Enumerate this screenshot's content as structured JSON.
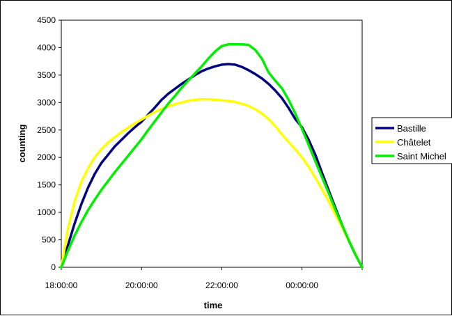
{
  "chart_data": {
    "type": "line",
    "title": "",
    "xlabel": "time",
    "ylabel": "counting",
    "x_ticks": [
      "18:00:00",
      "20:00:00",
      "22:00:00",
      "00:00:00"
    ],
    "x_range": [
      "18:00",
      "01:30"
    ],
    "ylim": [
      0,
      4500
    ],
    "y_ticks": [
      "0",
      "500",
      "1000",
      "1500",
      "2000",
      "2500",
      "3000",
      "3500",
      "4000",
      "4500"
    ],
    "grid": false,
    "legend_position": "right",
    "x": [
      "18:00",
      "18:10",
      "18:20",
      "18:30",
      "18:40",
      "18:50",
      "19:00",
      "19:10",
      "19:20",
      "19:30",
      "19:40",
      "19:50",
      "20:00",
      "20:10",
      "20:20",
      "20:30",
      "20:40",
      "20:50",
      "21:00",
      "21:10",
      "21:20",
      "21:30",
      "21:40",
      "21:50",
      "22:00",
      "22:10",
      "22:20",
      "22:30",
      "22:40",
      "22:50",
      "23:00",
      "23:10",
      "23:20",
      "23:30",
      "23:40",
      "23:50",
      "00:00",
      "00:10",
      "00:20",
      "00:30",
      "00:40",
      "00:50",
      "01:00",
      "01:10",
      "01:20",
      "01:30"
    ],
    "series": [
      {
        "name": "Bastille",
        "color": "#000080",
        "values": [
          0,
          400,
          800,
          1150,
          1450,
          1700,
          1900,
          2050,
          2200,
          2320,
          2440,
          2550,
          2650,
          2780,
          2910,
          3050,
          3160,
          3250,
          3340,
          3420,
          3500,
          3570,
          3620,
          3660,
          3690,
          3700,
          3690,
          3650,
          3590,
          3520,
          3440,
          3340,
          3220,
          3080,
          2900,
          2700,
          2550,
          2320,
          2050,
          1720,
          1400,
          1080,
          770,
          480,
          230,
          0
        ]
      },
      {
        "name": "Châtelet",
        "color": "#ffff00",
        "values": [
          0,
          700,
          1200,
          1550,
          1800,
          2000,
          2150,
          2270,
          2370,
          2460,
          2540,
          2620,
          2690,
          2760,
          2830,
          2880,
          2930,
          2970,
          3000,
          3030,
          3050,
          3060,
          3060,
          3050,
          3040,
          3030,
          3010,
          2980,
          2940,
          2880,
          2800,
          2700,
          2570,
          2420,
          2280,
          2150,
          2000,
          1830,
          1630,
          1420,
          1200,
          960,
          730,
          480,
          240,
          0
        ]
      },
      {
        "name": "Saint Michel",
        "color": "#00ee00",
        "values": [
          0,
          300,
          580,
          820,
          1040,
          1230,
          1410,
          1570,
          1730,
          1880,
          2030,
          2180,
          2330,
          2500,
          2660,
          2820,
          2980,
          3120,
          3270,
          3400,
          3530,
          3660,
          3800,
          3930,
          4030,
          4060,
          4060,
          4060,
          4050,
          3960,
          3800,
          3550,
          3400,
          3260,
          3050,
          2800,
          2520,
          2230,
          1930,
          1640,
          1350,
          1050,
          770,
          490,
          230,
          0
        ]
      }
    ]
  }
}
